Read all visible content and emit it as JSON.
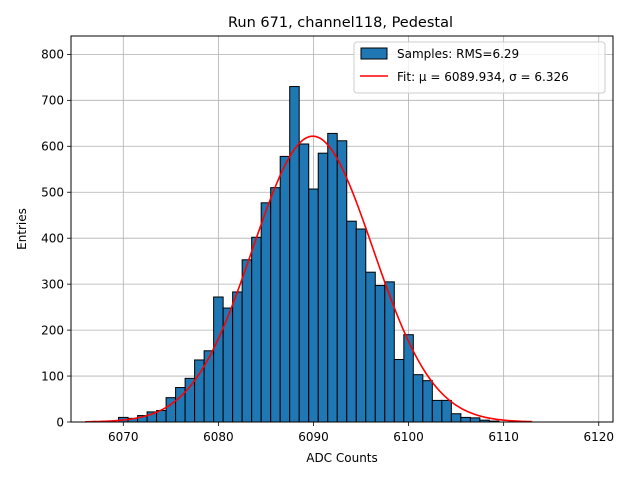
{
  "chart_data": {
    "type": "bar",
    "title": "Run 671, channel118, Pedestal",
    "xlabel": "ADC Counts",
    "ylabel": "Entries",
    "xlim": [
      6064.5,
      6121.5
    ],
    "ylim": [
      0,
      840
    ],
    "xticks": [
      6070,
      6080,
      6090,
      6100,
      6110,
      6120
    ],
    "yticks": [
      0,
      100,
      200,
      300,
      400,
      500,
      600,
      700,
      800
    ],
    "grid": true,
    "legend_position": "top-right",
    "bin_width": 1,
    "bins": [
      {
        "x": 6070,
        "y": 10
      },
      {
        "x": 6071,
        "y": 8
      },
      {
        "x": 6072,
        "y": 14
      },
      {
        "x": 6073,
        "y": 22
      },
      {
        "x": 6074,
        "y": 25
      },
      {
        "x": 6075,
        "y": 53
      },
      {
        "x": 6076,
        "y": 75
      },
      {
        "x": 6077,
        "y": 95
      },
      {
        "x": 6078,
        "y": 135
      },
      {
        "x": 6079,
        "y": 155
      },
      {
        "x": 6080,
        "y": 272
      },
      {
        "x": 6081,
        "y": 248
      },
      {
        "x": 6082,
        "y": 283
      },
      {
        "x": 6083,
        "y": 353
      },
      {
        "x": 6084,
        "y": 402
      },
      {
        "x": 6085,
        "y": 477
      },
      {
        "x": 6086,
        "y": 510
      },
      {
        "x": 6087,
        "y": 578
      },
      {
        "x": 6088,
        "y": 730
      },
      {
        "x": 6089,
        "y": 605
      },
      {
        "x": 6090,
        "y": 507
      },
      {
        "x": 6091,
        "y": 585
      },
      {
        "x": 6092,
        "y": 628
      },
      {
        "x": 6093,
        "y": 612
      },
      {
        "x": 6094,
        "y": 437
      },
      {
        "x": 6095,
        "y": 420
      },
      {
        "x": 6096,
        "y": 326
      },
      {
        "x": 6097,
        "y": 297
      },
      {
        "x": 6098,
        "y": 305
      },
      {
        "x": 6099,
        "y": 136
      },
      {
        "x": 6100,
        "y": 190
      },
      {
        "x": 6101,
        "y": 103
      },
      {
        "x": 6102,
        "y": 90
      },
      {
        "x": 6103,
        "y": 47
      },
      {
        "x": 6104,
        "y": 47
      },
      {
        "x": 6105,
        "y": 18
      },
      {
        "x": 6106,
        "y": 10
      },
      {
        "x": 6107,
        "y": 9
      },
      {
        "x": 6108,
        "y": 4
      },
      {
        "x": 6109,
        "y": 2
      }
    ],
    "fit": {
      "mu": 6089.934,
      "sigma": 6.326,
      "amplitude": 622,
      "x_range": [
        6066,
        6113
      ]
    },
    "series": [
      {
        "name": "Samples: RMS=6.29",
        "kind": "histogram",
        "color": "#1f77b4",
        "edge_color": "#000000"
      },
      {
        "name": "Fit: μ = 6089.934, σ = 6.326",
        "kind": "line",
        "color": "#ff0000"
      }
    ]
  }
}
